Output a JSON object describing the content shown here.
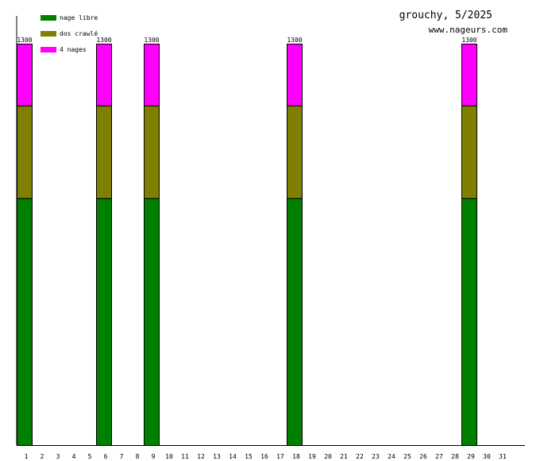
{
  "chart_data": {
    "type": "bar",
    "stacked": true,
    "title": "grouchy, 5/2025",
    "subtitle": "www.nageurs.com",
    "categories": [
      "1",
      "2",
      "3",
      "4",
      "5",
      "6",
      "7",
      "8",
      "9",
      "10",
      "11",
      "12",
      "13",
      "14",
      "15",
      "16",
      "17",
      "18",
      "19",
      "20",
      "21",
      "22",
      "23",
      "24",
      "25",
      "26",
      "27",
      "28",
      "29",
      "30",
      "31"
    ],
    "series": [
      {
        "name": "nage libre",
        "color": "#008000",
        "values": [
          800,
          0,
          0,
          0,
          0,
          800,
          0,
          0,
          800,
          0,
          0,
          0,
          0,
          0,
          0,
          0,
          0,
          800,
          0,
          0,
          0,
          0,
          0,
          0,
          0,
          0,
          0,
          0,
          800,
          0,
          0
        ]
      },
      {
        "name": "dos crawlé",
        "color": "#808000",
        "values": [
          300,
          0,
          0,
          0,
          0,
          300,
          0,
          0,
          300,
          0,
          0,
          0,
          0,
          0,
          0,
          0,
          0,
          300,
          0,
          0,
          0,
          0,
          0,
          0,
          0,
          0,
          0,
          0,
          300,
          0,
          0
        ]
      },
      {
        "name": "4 nages",
        "color": "#ff00ff",
        "values": [
          200,
          0,
          0,
          0,
          0,
          200,
          0,
          0,
          200,
          0,
          0,
          0,
          0,
          0,
          0,
          0,
          0,
          200,
          0,
          0,
          0,
          0,
          0,
          0,
          0,
          0,
          0,
          0,
          200,
          0,
          0
        ]
      }
    ],
    "totals": [
      "1300",
      "",
      "",
      "",
      "",
      "1300",
      "",
      "",
      "1300",
      "",
      "",
      "",
      "",
      "",
      "",
      "",
      "",
      "1300",
      "",
      "",
      "",
      "",
      "",
      "",
      "",
      "",
      "",
      "",
      "1300",
      "",
      ""
    ],
    "ylim": [
      0,
      1390
    ],
    "legend_position": "top-left",
    "grid": false
  }
}
